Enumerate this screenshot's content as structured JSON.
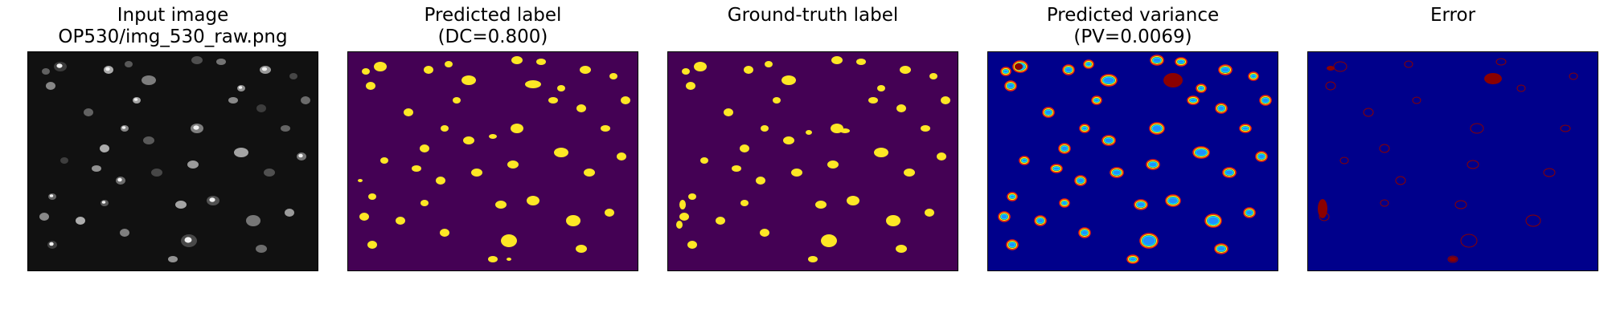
{
  "panels": [
    {
      "title_line1": "Input image",
      "title_line2": "OP530/img_530_raw.png"
    },
    {
      "title_line1": "Predicted label",
      "title_line2": "(DC=0.800)"
    },
    {
      "title_line1": "",
      "title_line2": "Ground-truth label"
    },
    {
      "title_line1": "Predicted variance",
      "title_line2": "(PV=0.0069)"
    },
    {
      "title_line1": "",
      "title_line2": "Error"
    }
  ],
  "colors": {
    "input_background": "#111111",
    "label_background": "#440154",
    "label_foreground": "#fde725",
    "variance_background": "#00008b",
    "error_background": "#00008b",
    "error_foreground": "#8b0000"
  }
}
